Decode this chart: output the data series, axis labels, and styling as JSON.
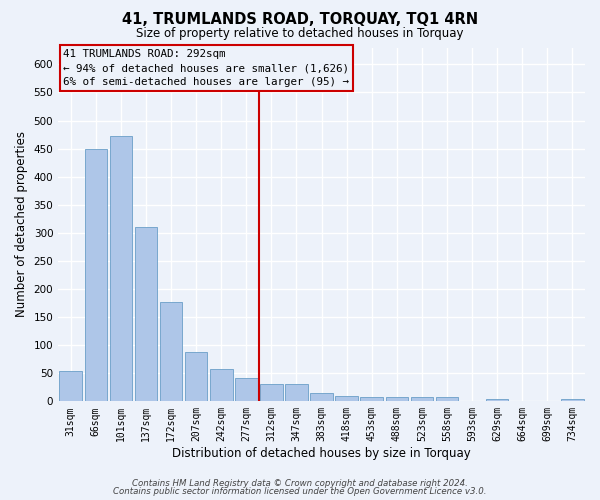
{
  "title": "41, TRUMLANDS ROAD, TORQUAY, TQ1 4RN",
  "subtitle": "Size of property relative to detached houses in Torquay",
  "xlabel": "Distribution of detached houses by size in Torquay",
  "ylabel": "Number of detached properties",
  "categories": [
    "31sqm",
    "66sqm",
    "101sqm",
    "137sqm",
    "172sqm",
    "207sqm",
    "242sqm",
    "277sqm",
    "312sqm",
    "347sqm",
    "383sqm",
    "418sqm",
    "453sqm",
    "488sqm",
    "523sqm",
    "558sqm",
    "593sqm",
    "629sqm",
    "664sqm",
    "699sqm",
    "734sqm"
  ],
  "values": [
    54,
    450,
    472,
    311,
    176,
    88,
    58,
    42,
    30,
    30,
    15,
    10,
    8,
    7,
    7,
    8,
    0,
    5,
    0,
    0,
    5
  ],
  "bar_color": "#aec6e8",
  "bar_edge_color": "#6a9fc8",
  "vline_color": "#cc0000",
  "ylim": [
    0,
    630
  ],
  "yticks": [
    0,
    50,
    100,
    150,
    200,
    250,
    300,
    350,
    400,
    450,
    500,
    550,
    600
  ],
  "annotation_line1": "41 TRUMLANDS ROAD: 292sqm",
  "annotation_line2": "← 94% of detached houses are smaller (1,626)",
  "annotation_line3": "6% of semi-detached houses are larger (95) →",
  "annotation_box_color": "#cc0000",
  "footer1": "Contains HM Land Registry data © Crown copyright and database right 2024.",
  "footer2": "Contains public sector information licensed under the Open Government Licence v3.0.",
  "bg_color": "#edf2fa",
  "grid_color": "#ffffff"
}
